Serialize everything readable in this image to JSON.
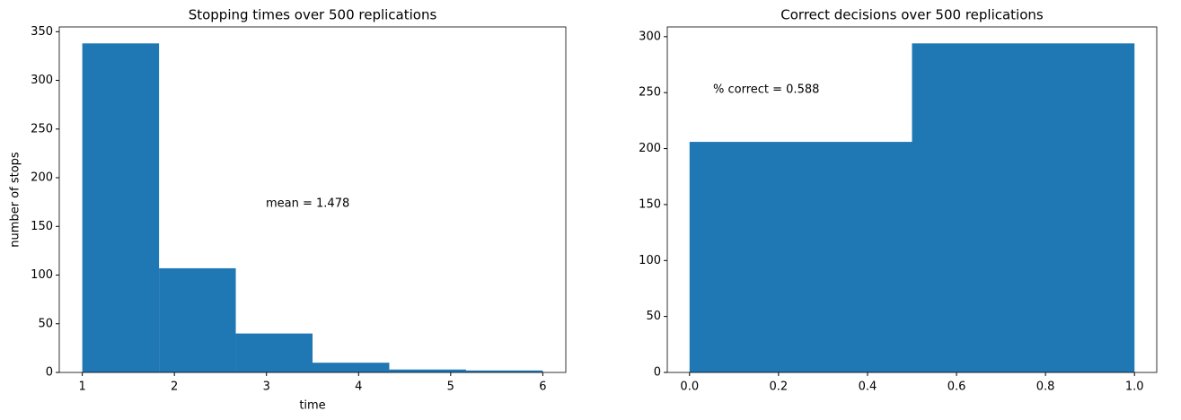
{
  "chart_data": [
    {
      "type": "histogram",
      "title": "Stopping times over 500 replications",
      "x_label": "time",
      "y_label": "number of stops",
      "bins": [
        1,
        1.8333,
        2.6667,
        3.5,
        4.3333,
        5.1667,
        6
      ],
      "counts": [
        338,
        107,
        40,
        10,
        3,
        2
      ],
      "color": "#1f77b4",
      "xlim": [
        0.75,
        6.25
      ],
      "ylim": [
        0,
        354.9
      ],
      "xticks": [
        1,
        2,
        3,
        4,
        5,
        6
      ],
      "yticks": [
        0,
        50,
        100,
        150,
        200,
        250,
        300,
        350
      ],
      "annotation": "mean = 1.478"
    },
    {
      "type": "histogram",
      "title": "Correct decisions over 500 replications",
      "bins": [
        0,
        0.5,
        1
      ],
      "counts": [
        206,
        294
      ],
      "color": "#1f77b4",
      "xlim": [
        -0.05,
        1.05
      ],
      "ylim": [
        0,
        308.7
      ],
      "xticks": [
        {
          "value": 0,
          "label": "0.0"
        },
        {
          "value": 0.2,
          "label": "0.2"
        },
        {
          "value": 0.4,
          "label": "0.4"
        },
        {
          "value": 0.6,
          "label": "0.6"
        },
        {
          "value": 0.8,
          "label": "0.8"
        },
        {
          "value": 1,
          "label": "1.0"
        }
      ],
      "yticks": [
        0,
        50,
        100,
        150,
        200,
        250,
        300
      ],
      "annotation": "% correct = 0.588"
    }
  ]
}
